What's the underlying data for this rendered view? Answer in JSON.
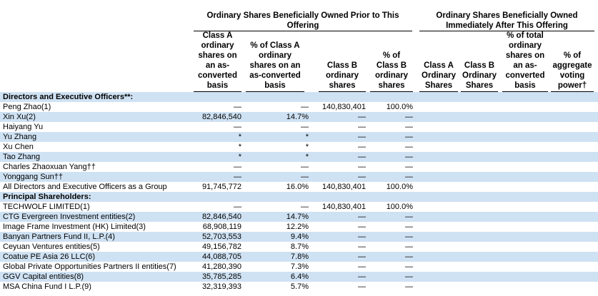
{
  "group_headers": {
    "prior": "Ordinary Shares Beneficially Owned Prior to This Offering",
    "after": "Ordinary Shares Beneficially Owned Immediately After This Offering"
  },
  "columns": [
    "Class A\nordinary\nshares on\nan as-\nconverted\nbasis",
    "% of Class A\nordinary\nshares on an\nas-converted\nbasis",
    "Class B\nordinary\nshares",
    "% of\nClass B\nordinary\nshares",
    "Class A\nOrdinary\nShares",
    "Class B\nOrdinary\nShares",
    "% of total\nordinary\nshares on\nan as-\nconverted\nbasis",
    "% of\naggregate\nvoting\npower†"
  ],
  "rows": [
    {
      "label": "Directors and Executive Officers**:",
      "section": true,
      "cells": [
        "",
        "",
        "",
        "",
        "",
        "",
        "",
        ""
      ]
    },
    {
      "label": "Peng Zhao(1)",
      "cells": [
        "—",
        "—",
        "140,830,401",
        "100.0%",
        "",
        "",
        "",
        ""
      ]
    },
    {
      "label": "Xin Xu(2)",
      "cells": [
        "82,846,540",
        "14.7%",
        "—",
        "—",
        "",
        "",
        "",
        ""
      ]
    },
    {
      "label": "Haiyang Yu",
      "cells": [
        "—",
        "—",
        "—",
        "—",
        "",
        "",
        "",
        ""
      ]
    },
    {
      "label": "Yu Zhang",
      "cells": [
        "*",
        "*",
        "—",
        "—",
        "",
        "",
        "",
        ""
      ]
    },
    {
      "label": "Xu Chen",
      "cells": [
        "*",
        "*",
        "—",
        "—",
        "",
        "",
        "",
        ""
      ]
    },
    {
      "label": "Tao Zhang",
      "cells": [
        "*",
        "*",
        "—",
        "—",
        "",
        "",
        "",
        ""
      ]
    },
    {
      "label": "Charles Zhaoxuan Yang††",
      "cells": [
        "—",
        "—",
        "—",
        "—",
        "",
        "",
        "",
        ""
      ]
    },
    {
      "label": "Yonggang Sun††",
      "cells": [
        "—",
        "—",
        "—",
        "—",
        "",
        "",
        "",
        ""
      ]
    },
    {
      "label": "All Directors and Executive Officers as a Group",
      "cells": [
        "91,745,772",
        "16.0%",
        "140,830,401",
        "100.0%",
        "",
        "",
        "",
        ""
      ]
    },
    {
      "label": "Principal Shareholders:",
      "section": true,
      "cells": [
        "",
        "",
        "",
        "",
        "",
        "",
        "",
        ""
      ]
    },
    {
      "label": "TECHWOLF LIMITED(1)",
      "cells": [
        "—",
        "—",
        "140,830,401",
        "100.0%",
        "",
        "",
        "",
        ""
      ]
    },
    {
      "label": "CTG Evergreen Investment entities(2)",
      "cells": [
        "82,846,540",
        "14.7%",
        "—",
        "—",
        "",
        "",
        "",
        ""
      ]
    },
    {
      "label": "Image Frame Investment (HK) Limited(3)",
      "cells": [
        "68,908,119",
        "12.2%",
        "—",
        "—",
        "",
        "",
        "",
        ""
      ]
    },
    {
      "label": "Banyan Partners Fund II, L.P.(4)",
      "cells": [
        "52,703,553",
        "9.4%",
        "—",
        "—",
        "",
        "",
        "",
        ""
      ]
    },
    {
      "label": "Ceyuan Ventures entities(5)",
      "cells": [
        "49,156,782",
        "8.7%",
        "—",
        "—",
        "",
        "",
        "",
        ""
      ]
    },
    {
      "label": "Coatue PE Asia 26 LLC(6)",
      "cells": [
        "44,088,705",
        "7.8%",
        "—",
        "—",
        "",
        "",
        "",
        ""
      ]
    },
    {
      "label": "Global Private Opportunities Partners II entities(7)",
      "cells": [
        "41,280,390",
        "7.3%",
        "—",
        "—",
        "",
        "",
        "",
        ""
      ]
    },
    {
      "label": "GGV Capital entities(8)",
      "cells": [
        "35,785,285",
        "6.4%",
        "—",
        "—",
        "",
        "",
        "",
        ""
      ]
    },
    {
      "label": "MSA China Fund I L.P.(9)",
      "cells": [
        "32,319,393",
        "5.7%",
        "—",
        "—",
        "",
        "",
        "",
        ""
      ]
    }
  ]
}
